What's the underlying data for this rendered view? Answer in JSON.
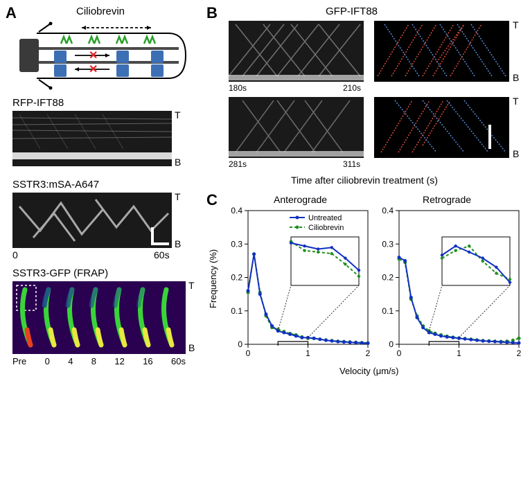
{
  "panelA": {
    "label": "A",
    "diagram_title": "Ciliobrevin",
    "colors": {
      "membrane": "#000000",
      "microtubule": "#4a4a4a",
      "base": "#3a3a3a",
      "dynein": "#3d6fb5",
      "kinesin": "#2aa02a",
      "cross": "#e62020"
    },
    "kymo_rfp": {
      "title": "RFP-IFT88",
      "tip_label": "T",
      "base_label": "B",
      "xstart": "0",
      "xend": "60s",
      "bg": "#1a1a1a"
    },
    "kymo_sstr3": {
      "title": "SSTR3:mSA-A647",
      "tip_label": "T",
      "base_label": "B",
      "bg": "#1a1a1a"
    },
    "frap": {
      "title": "SSTR3-GFP (FRAP)",
      "tip_label": "T",
      "base_label": "B",
      "timepoints": [
        "Pre",
        "0",
        "4",
        "8",
        "12",
        "16",
        "60s"
      ],
      "bg": "#2a0050",
      "cilium_green": "#3ad43a",
      "cilium_yellow": "#e8e840",
      "cilium_red": "#e84020"
    }
  },
  "panelB": {
    "label": "B",
    "title": "GFP-IFT88",
    "xaxis_label": "Time after ciliobrevin treatment (s)",
    "kymo1": {
      "xstart": "180s",
      "xend": "210s",
      "tip": "T",
      "base": "B"
    },
    "kymo2": {
      "xstart": "281s",
      "xend": "311s",
      "tip": "T",
      "base": "B"
    },
    "trace_antero": "#d94a3a",
    "trace_retro": "#5a8ad4",
    "bg_kymo": "#1a1a1a",
    "bg_trace": "#000000"
  },
  "panelC": {
    "label": "C",
    "antero_title": "Anterograde",
    "retro_title": "Retrograde",
    "xlabel": "Velocity (μm/s)",
    "ylabel": "Frequency (%)",
    "legend": {
      "untreated": "Untreated",
      "ciliobrevin": "Ciliobrevin",
      "untreated_color": "#1030c0",
      "ciliobrevin_color": "#209020"
    },
    "xlim": [
      0,
      2
    ],
    "ylim": [
      0,
      0.4
    ],
    "xticks": [
      0,
      1,
      2
    ],
    "yticks": [
      0,
      0.1,
      0.2,
      0.3,
      0.4
    ],
    "x": [
      0,
      0.1,
      0.2,
      0.3,
      0.4,
      0.5,
      0.6,
      0.7,
      0.8,
      0.9,
      1.0,
      1.1,
      1.2,
      1.3,
      1.4,
      1.5,
      1.6,
      1.7,
      1.8,
      1.9,
      2.0
    ],
    "antero_untreated": [
      0.16,
      0.27,
      0.15,
      0.09,
      0.055,
      0.04,
      0.035,
      0.03,
      0.025,
      0.02,
      0.02,
      0.018,
      0.015,
      0.012,
      0.01,
      0.008,
      0.007,
      0.006,
      0.005,
      0.004,
      0.003
    ],
    "antero_cilio": [
      0.155,
      0.27,
      0.155,
      0.085,
      0.05,
      0.045,
      0.038,
      0.032,
      0.028,
      0.022,
      0.018,
      0.018,
      0.015,
      0.013,
      0.011,
      0.009,
      0.008,
      0.007,
      0.006,
      0.005,
      0.004
    ],
    "retro_untreated": [
      0.26,
      0.25,
      0.14,
      0.08,
      0.05,
      0.035,
      0.03,
      0.025,
      0.022,
      0.02,
      0.018,
      0.016,
      0.014,
      0.012,
      0.01,
      0.009,
      0.008,
      0.007,
      0.006,
      0.005,
      0.004
    ],
    "retro_cilio": [
      0.255,
      0.245,
      0.135,
      0.085,
      0.055,
      0.04,
      0.033,
      0.028,
      0.024,
      0.021,
      0.019,
      0.017,
      0.015,
      0.013,
      0.011,
      0.01,
      0.009,
      0.008,
      0.009,
      0.012,
      0.018
    ],
    "inset_xlim": [
      0.5,
      1.0
    ],
    "inset_antero_u": [
      0.31,
      0.3,
      0.29,
      0.295,
      0.26,
      0.22
    ],
    "inset_antero_c": [
      0.315,
      0.285,
      0.28,
      0.275,
      0.24,
      0.2
    ],
    "inset_retro_u": [
      0.27,
      0.3,
      0.28,
      0.26,
      0.23,
      0.18
    ],
    "inset_retro_c": [
      0.26,
      0.285,
      0.3,
      0.25,
      0.21,
      0.19
    ]
  }
}
